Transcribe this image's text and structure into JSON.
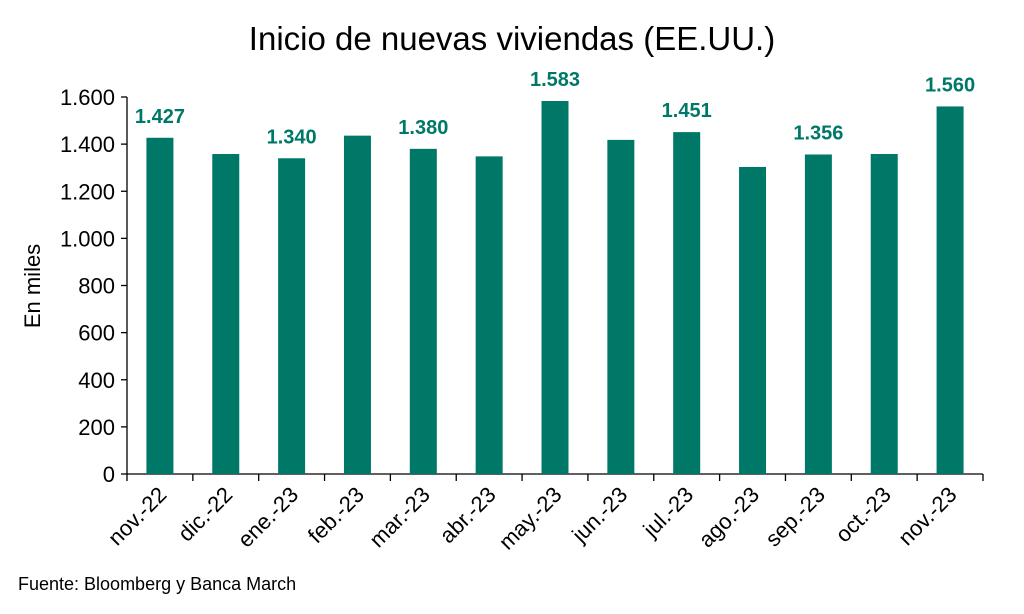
{
  "chart_data": {
    "type": "bar",
    "title": "Inicio de nuevas viviendas (EE.UU.)",
    "ylabel": "En miles",
    "xlabel": "",
    "ylim": [
      0,
      1600
    ],
    "yticks": [
      0,
      200,
      400,
      600,
      800,
      1000,
      1200,
      1400,
      1600
    ],
    "ytick_labels": [
      "0",
      "200",
      "400",
      "600",
      "800",
      "1.000",
      "1.200",
      "1.400",
      "1.600"
    ],
    "categories": [
      "nov.-22",
      "dic.-22",
      "ene.-23",
      "feb.-23",
      "mar.-23",
      "abr.-23",
      "may.-23",
      "jun.-23",
      "jul.-23",
      "ago.-23",
      "sep.-23",
      "oct.-23",
      "nov.-23"
    ],
    "values": [
      1427,
      1358,
      1340,
      1436,
      1380,
      1348,
      1583,
      1418,
      1451,
      1303,
      1356,
      1358,
      1560
    ],
    "data_labels": [
      "1.427",
      null,
      "1.340",
      null,
      "1.380",
      null,
      "1.583",
      null,
      "1.451",
      null,
      "1.356",
      null,
      "1.560"
    ],
    "bar_color": "#007868",
    "label_color": "#007868",
    "grid": false,
    "legend": "none"
  },
  "source_text": "Fuente: Bloomberg y Banca March"
}
